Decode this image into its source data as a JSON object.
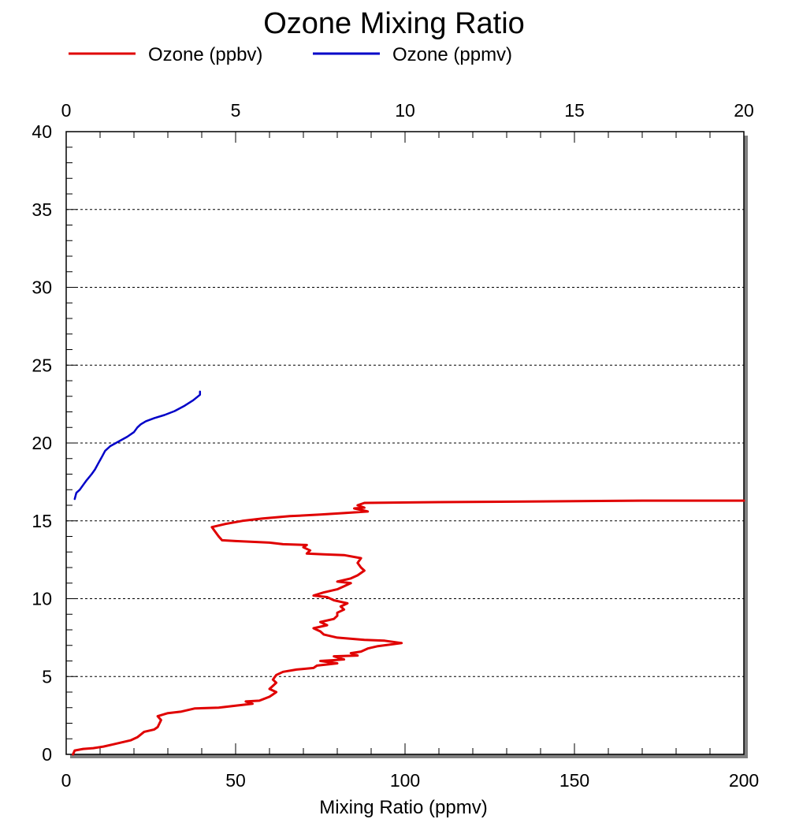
{
  "chart_data": {
    "type": "line",
    "title": "Ozone Mixing Ratio",
    "xlabel": "Mixing Ratio (ppmv)",
    "ylabel": "",
    "legend_position": "top",
    "grid": {
      "horizontal_dashed": true,
      "vertical": false
    },
    "y_axis": {
      "range": [
        0,
        40
      ],
      "major_ticks": [
        0,
        5,
        10,
        15,
        20,
        25,
        30,
        35,
        40
      ],
      "minor_step": 1
    },
    "x_axis_bottom": {
      "range": [
        0,
        200
      ],
      "major_ticks": [
        0,
        50,
        100,
        150,
        200
      ],
      "minor_step": 10
    },
    "x_axis_top": {
      "range": [
        0,
        20
      ],
      "major_ticks": [
        0,
        5,
        10,
        15,
        20
      ],
      "minor_step": 1
    },
    "series": [
      {
        "name": "Ozone (ppbv)",
        "color": "#e00000",
        "x_axis": "bottom",
        "points": [
          [
            2,
            0.0
          ],
          [
            2.5,
            0.25
          ],
          [
            5,
            0.35
          ],
          [
            8,
            0.4
          ],
          [
            11,
            0.5
          ],
          [
            14,
            0.65
          ],
          [
            16,
            0.75
          ],
          [
            19,
            0.9
          ],
          [
            21,
            1.1
          ],
          [
            23,
            1.45
          ],
          [
            26,
            1.6
          ],
          [
            27,
            1.75
          ],
          [
            28,
            2.2
          ],
          [
            27,
            2.45
          ],
          [
            30,
            2.65
          ],
          [
            34,
            2.75
          ],
          [
            38,
            2.95
          ],
          [
            45,
            3.0
          ],
          [
            49,
            3.1
          ],
          [
            53,
            3.2
          ],
          [
            55,
            3.25
          ],
          [
            53,
            3.4
          ],
          [
            57,
            3.45
          ],
          [
            60,
            3.7
          ],
          [
            61,
            3.85
          ],
          [
            62,
            4.0
          ],
          [
            60,
            4.2
          ],
          [
            61,
            4.4
          ],
          [
            62,
            4.6
          ],
          [
            61,
            4.8
          ],
          [
            62,
            5.1
          ],
          [
            64,
            5.3
          ],
          [
            68,
            5.45
          ],
          [
            73,
            5.55
          ],
          [
            74,
            5.7
          ],
          [
            78,
            5.8
          ],
          [
            80,
            5.85
          ],
          [
            75,
            6.0
          ],
          [
            79,
            6.05
          ],
          [
            82,
            6.1
          ],
          [
            79,
            6.3
          ],
          [
            86,
            6.35
          ],
          [
            84,
            6.5
          ],
          [
            87,
            6.6
          ],
          [
            89,
            6.8
          ],
          [
            92,
            6.95
          ],
          [
            99,
            7.15
          ],
          [
            94,
            7.3
          ],
          [
            88,
            7.35
          ],
          [
            80,
            7.5
          ],
          [
            76,
            7.7
          ],
          [
            75,
            7.9
          ],
          [
            73,
            8.1
          ],
          [
            77,
            8.3
          ],
          [
            75,
            8.5
          ],
          [
            79,
            8.7
          ],
          [
            80,
            8.9
          ],
          [
            80,
            9.1
          ],
          [
            82,
            9.3
          ],
          [
            81,
            9.5
          ],
          [
            83,
            9.7
          ],
          [
            79,
            9.9
          ],
          [
            77,
            10.1
          ],
          [
            73,
            10.2
          ],
          [
            76,
            10.4
          ],
          [
            80,
            10.6
          ],
          [
            82,
            10.8
          ],
          [
            84,
            11.0
          ],
          [
            80,
            11.1
          ],
          [
            84,
            11.3
          ],
          [
            86,
            11.5
          ],
          [
            88,
            11.8
          ],
          [
            87,
            12.0
          ],
          [
            86,
            12.3
          ],
          [
            87,
            12.6
          ],
          [
            82,
            12.8
          ],
          [
            76,
            12.85
          ],
          [
            71,
            12.9
          ],
          [
            72,
            13.1
          ],
          [
            70,
            13.3
          ],
          [
            71,
            13.45
          ],
          [
            64,
            13.5
          ],
          [
            60,
            13.6
          ],
          [
            55,
            13.65
          ],
          [
            50,
            13.7
          ],
          [
            46,
            13.75
          ],
          [
            45,
            14.0
          ],
          [
            44,
            14.3
          ],
          [
            43,
            14.6
          ],
          [
            47,
            14.8
          ],
          [
            52,
            15.0
          ],
          [
            58,
            15.15
          ],
          [
            66,
            15.3
          ],
          [
            75,
            15.4
          ],
          [
            82,
            15.5
          ],
          [
            89,
            15.6
          ],
          [
            85,
            15.8
          ],
          [
            88,
            15.85
          ],
          [
            86,
            16.0
          ],
          [
            88,
            16.15
          ],
          [
            110,
            16.2
          ],
          [
            140,
            16.25
          ],
          [
            170,
            16.3
          ],
          [
            200,
            16.3
          ]
        ]
      },
      {
        "name": "Ozone (ppmv)",
        "color": "#0000c8",
        "x_axis": "top",
        "points": [
          [
            0.25,
            16.4
          ],
          [
            0.3,
            16.8
          ],
          [
            0.4,
            17.0
          ],
          [
            0.5,
            17.3
          ],
          [
            0.6,
            17.6
          ],
          [
            0.75,
            18.0
          ],
          [
            0.85,
            18.3
          ],
          [
            0.95,
            18.7
          ],
          [
            1.05,
            19.1
          ],
          [
            1.15,
            19.5
          ],
          [
            1.3,
            19.8
          ],
          [
            1.55,
            20.1
          ],
          [
            1.8,
            20.4
          ],
          [
            2.0,
            20.7
          ],
          [
            2.1,
            21.0
          ],
          [
            2.2,
            21.2
          ],
          [
            2.35,
            21.4
          ],
          [
            2.6,
            21.6
          ],
          [
            2.9,
            21.8
          ],
          [
            3.2,
            22.05
          ],
          [
            3.5,
            22.4
          ],
          [
            3.75,
            22.75
          ],
          [
            3.95,
            23.1
          ],
          [
            3.95,
            23.3
          ]
        ]
      }
    ]
  }
}
